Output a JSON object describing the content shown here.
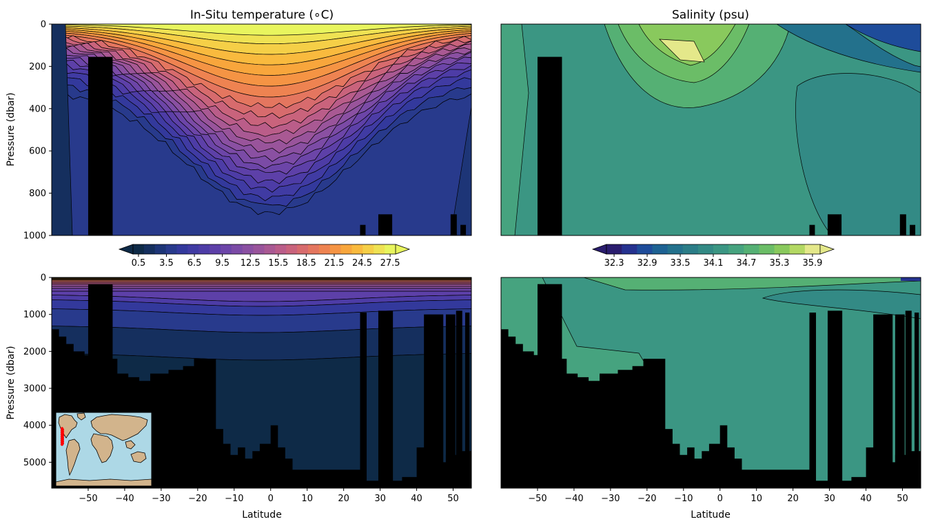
{
  "figure": {
    "background": "#ffffff",
    "ocean_color": "#add8e6",
    "land_color": "#d2b48c",
    "track_color": "#ff0000"
  },
  "chart_data": [
    {
      "type": "heatmap",
      "panel": "upper-temperature",
      "title": "In-Situ temperature (∘C)",
      "ylabel": "Pressure (dbar)",
      "xlim": [
        -60,
        55
      ],
      "ylim": [
        1000,
        0
      ],
      "yticks": [
        0,
        200,
        400,
        600,
        800,
        1000
      ],
      "surface_contour_depth": [
        20,
        20,
        20,
        25,
        30,
        40,
        60,
        70,
        75,
        60,
        40,
        20,
        15,
        20,
        40,
        60,
        70,
        60,
        50,
        40,
        30
      ],
      "masked_columns": [
        {
          "x0": -50,
          "x1": -43.3,
          "top": 155
        },
        {
          "x0": 24.5,
          "x1": 26,
          "top": 950
        },
        {
          "x0": 29.5,
          "x1": 33.3,
          "top": 900
        },
        {
          "x0": 49.3,
          "x1": 51,
          "top": 900
        },
        {
          "x0": 52,
          "x1": 53.5,
          "top": 950
        }
      ]
    },
    {
      "type": "heatmap",
      "panel": "upper-salinity",
      "title": "Salinity (psu)",
      "xlim": [
        -60,
        55
      ],
      "ylim": [
        1000,
        0
      ],
      "masked_columns": [
        {
          "x0": -50,
          "x1": -43.3,
          "top": 155
        },
        {
          "x0": 24.5,
          "x1": 26,
          "top": 950
        },
        {
          "x0": 29.5,
          "x1": 33.3,
          "top": 900
        },
        {
          "x0": 49.3,
          "x1": 51,
          "top": 900
        },
        {
          "x0": 52,
          "x1": 53.5,
          "top": 950
        }
      ]
    },
    {
      "type": "heatmap",
      "panel": "full-temperature",
      "ylabel": "Pressure (dbar)",
      "xlabel": "Latitude",
      "xlim": [
        -60,
        55
      ],
      "ylim": [
        5700,
        0
      ],
      "xticks": [
        -50,
        -40,
        -30,
        -20,
        -10,
        0,
        10,
        20,
        30,
        40,
        50
      ],
      "yticks": [
        0,
        1000,
        2000,
        3000,
        4000,
        5000
      ],
      "bathymetry": [
        [
          -60,
          1400
        ],
        [
          -58,
          1600
        ],
        [
          -56,
          1800
        ],
        [
          -54,
          2000
        ],
        [
          -51,
          2100
        ],
        [
          -48,
          2200
        ],
        [
          -45,
          2200
        ],
        [
          -42,
          2600
        ],
        [
          -39,
          2700
        ],
        [
          -36,
          2800
        ],
        [
          -33,
          2600
        ],
        [
          -28,
          2500
        ],
        [
          -24,
          2400
        ],
        [
          -21,
          2200
        ],
        [
          -17,
          2200
        ],
        [
          -15,
          4100
        ],
        [
          -13,
          4500
        ],
        [
          -11,
          4800
        ],
        [
          -9,
          4600
        ],
        [
          -7,
          4900
        ],
        [
          -5,
          4700
        ],
        [
          -3,
          4500
        ],
        [
          0,
          4000
        ],
        [
          2,
          4600
        ],
        [
          4,
          4900
        ],
        [
          6,
          5200
        ],
        [
          10,
          5200
        ],
        [
          14,
          5200
        ],
        [
          18,
          5200
        ],
        [
          23,
          5200
        ],
        [
          25,
          5500
        ],
        [
          30,
          5500
        ],
        [
          33,
          5500
        ],
        [
          36,
          5400
        ],
        [
          40,
          4600
        ],
        [
          44,
          5000
        ],
        [
          48,
          4800
        ],
        [
          52,
          4700
        ],
        [
          55,
          4300
        ]
      ],
      "masked_columns": [
        {
          "x0": -50,
          "x1": -43.3,
          "top": 180
        },
        {
          "x0": 24.5,
          "x1": 26.3,
          "top": 950
        },
        {
          "x0": 29.5,
          "x1": 33.5,
          "top": 900
        },
        {
          "x0": 42,
          "x1": 47.3,
          "top": 1000
        },
        {
          "x0": 48,
          "x1": 50.6,
          "top": 1000
        },
        {
          "x0": 50.8,
          "x1": 52.5,
          "top": 900
        },
        {
          "x0": 53.3,
          "x1": 54.5,
          "top": 950
        }
      ]
    },
    {
      "type": "heatmap",
      "panel": "full-salinity",
      "xlabel": "Latitude",
      "xlim": [
        -60,
        55
      ],
      "ylim": [
        5700,
        0
      ],
      "xticks": [
        -50,
        -40,
        -30,
        -20,
        -10,
        0,
        10,
        20,
        30,
        40,
        50
      ],
      "bathymetry": [
        [
          -60,
          1400
        ],
        [
          -58,
          1600
        ],
        [
          -56,
          1800
        ],
        [
          -54,
          2000
        ],
        [
          -51,
          2100
        ],
        [
          -48,
          2200
        ],
        [
          -45,
          2200
        ],
        [
          -42,
          2600
        ],
        [
          -39,
          2700
        ],
        [
          -36,
          2800
        ],
        [
          -33,
          2600
        ],
        [
          -28,
          2500
        ],
        [
          -24,
          2400
        ],
        [
          -21,
          2200
        ],
        [
          -17,
          2200
        ],
        [
          -15,
          4100
        ],
        [
          -13,
          4500
        ],
        [
          -11,
          4800
        ],
        [
          -9,
          4600
        ],
        [
          -7,
          4900
        ],
        [
          -5,
          4700
        ],
        [
          -3,
          4500
        ],
        [
          0,
          4000
        ],
        [
          2,
          4600
        ],
        [
          4,
          4900
        ],
        [
          6,
          5200
        ],
        [
          10,
          5200
        ],
        [
          14,
          5200
        ],
        [
          18,
          5200
        ],
        [
          23,
          5200
        ],
        [
          25,
          5500
        ],
        [
          30,
          5500
        ],
        [
          33,
          5500
        ],
        [
          36,
          5400
        ],
        [
          40,
          4600
        ],
        [
          44,
          5000
        ],
        [
          48,
          4800
        ],
        [
          52,
          4700
        ],
        [
          55,
          4300
        ]
      ],
      "masked_columns": [
        {
          "x0": -50,
          "x1": -43.3,
          "top": 180
        },
        {
          "x0": 24.5,
          "x1": 26.3,
          "top": 950
        },
        {
          "x0": 29.5,
          "x1": 33.5,
          "top": 900
        },
        {
          "x0": 42,
          "x1": 47.3,
          "top": 1000
        },
        {
          "x0": 48,
          "x1": 50.6,
          "top": 1000
        },
        {
          "x0": 50.8,
          "x1": 52.5,
          "top": 900
        },
        {
          "x0": 53.3,
          "x1": 54.5,
          "top": 950
        }
      ]
    }
  ],
  "temp_colorbar": {
    "tick_labels": [
      "0.5",
      "3.5",
      "6.5",
      "9.5",
      "12.5",
      "15.5",
      "18.5",
      "21.5",
      "24.5",
      "27.5"
    ],
    "extend": "both",
    "colors": [
      "#0e2a47",
      "#152f5e",
      "#1d3577",
      "#283a8c",
      "#33399c",
      "#403ba3",
      "#4d3ca6",
      "#5d40a8",
      "#6c45a8",
      "#7b4ba6",
      "#8a50a2",
      "#99549b",
      "#a95993",
      "#ba5d89",
      "#c9637c",
      "#d76b6d",
      "#e4765f",
      "#ee8351",
      "#f59444",
      "#f8a63c",
      "#f9ba3e",
      "#f5cf47",
      "#efe253",
      "#e8f55e"
    ]
  },
  "sal_colorbar": {
    "tick_labels": [
      "32.3",
      "32.9",
      "33.5",
      "34.1",
      "34.7",
      "35.3",
      "35.9"
    ],
    "extend": "both",
    "colors": [
      "#2a1d6e",
      "#25328f",
      "#1e4c9a",
      "#1d6293",
      "#23718c",
      "#2b7d87",
      "#338a85",
      "#3b9683",
      "#46a37f",
      "#55b074",
      "#6bbd67",
      "#89c95d",
      "#b3d863",
      "#e4e88a"
    ]
  },
  "inset_map": {
    "track_latitudes": [
      -57,
      -55,
      -53,
      -51,
      -49,
      -47,
      -45,
      -43,
      -41,
      -39,
      -37,
      -35,
      -33,
      -31,
      -29,
      -27,
      -25
    ]
  }
}
